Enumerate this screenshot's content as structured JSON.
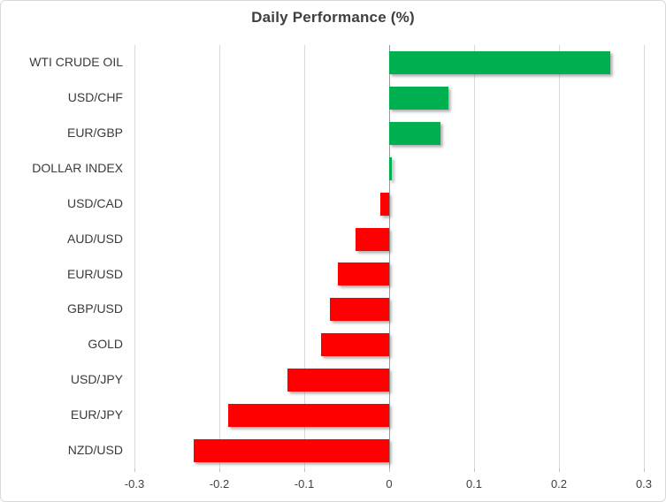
{
  "chart": {
    "title": "Daily Performance (%)",
    "colors": {
      "positive": "#00b050",
      "negative": "#ff0000",
      "gridline": "#d9d9d9",
      "zero_axis": "#9a9a9a",
      "tick": "#bfbfbf",
      "title_text": "#3f3f3f",
      "category_text": "#3b3b3b",
      "tick_label_text": "#404040",
      "border": "#d9d9d9",
      "background": "#ffffff"
    }
  },
  "chart_data": {
    "type": "bar",
    "orientation": "horizontal",
    "title": "Daily Performance (%)",
    "xlabel": "",
    "ylabel": "",
    "categories": [
      "WTI CRUDE OIL",
      "USD/CHF",
      "EUR/GBP",
      "DOLLAR INDEX",
      "USD/CAD",
      "AUD/USD",
      "EUR/USD",
      "GBP/USD",
      "GOLD",
      "USD/JPY",
      "EUR/JPY",
      "NZD/USD"
    ],
    "values": [
      0.26,
      0.07,
      0.06,
      0.003,
      -0.01,
      -0.04,
      -0.06,
      -0.07,
      -0.08,
      -0.12,
      -0.19,
      -0.23
    ],
    "xlim": [
      -0.3,
      0.3
    ],
    "x_ticks": [
      -0.3,
      -0.2,
      -0.1,
      0,
      0.1,
      0.2,
      0.3
    ],
    "x_tick_labels": [
      "-0.3",
      "-0.2",
      "-0.1",
      "0",
      "0.1",
      "0.2",
      "0.3"
    ],
    "grid": "vertical",
    "legend": "none",
    "bar_color_positive": "#00b050",
    "bar_color_negative": "#ff0000"
  }
}
